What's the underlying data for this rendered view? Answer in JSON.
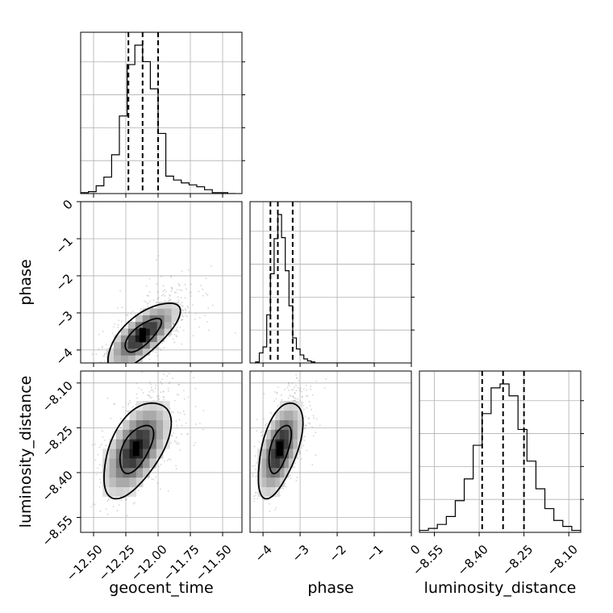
{
  "chart_data": {
    "type": "corner",
    "parameters": [
      "geocent_time",
      "phase",
      "luminosity_distance"
    ],
    "axis_labels": {
      "geocent_time": "geocent_time",
      "phase": "phase",
      "luminosity_distance": "luminosity_distance"
    },
    "ranges": {
      "geocent_time": [
        -12.6,
        -11.35
      ],
      "phase": [
        -4.35,
        0
      ],
      "luminosity_distance": [
        -8.6,
        -8.06
      ]
    },
    "ticks": {
      "geocent_time": {
        "values": [
          -12.5,
          -12.25,
          -12.0,
          -11.75,
          -11.5
        ],
        "labels": [
          "−12.50",
          "−12.25",
          "−12.00",
          "−11.75",
          "−11.50"
        ]
      },
      "phase": {
        "values": [
          -4,
          -3,
          -2,
          -1,
          0
        ],
        "labels": [
          "−4",
          "−3",
          "−2",
          "−1",
          "0"
        ]
      },
      "luminosity_distance": {
        "values": [
          -8.55,
          -8.4,
          -8.25,
          -8.1
        ],
        "labels": [
          "−8.55",
          "−8.40",
          "−8.25",
          "−8.10"
        ]
      }
    },
    "quantiles": {
      "geocent_time": [
        -12.23,
        -12.12,
        -12.0
      ],
      "phase": [
        -3.8,
        -3.6,
        -3.2
      ],
      "luminosity_distance": [
        -8.39,
        -8.32,
        -8.25
      ]
    },
    "histograms": {
      "geocent_time": {
        "edges": [
          -12.6,
          -12.54,
          -12.48,
          -12.42,
          -12.36,
          -12.3,
          -12.24,
          -12.18,
          -12.12,
          -12.06,
          -12.0,
          -11.94,
          -11.88,
          -11.82,
          -11.76,
          -11.7,
          -11.64,
          -11.58,
          -11.52,
          -11.46,
          -11.4
        ],
        "counts": [
          1,
          2,
          8,
          17,
          40,
          80,
          133,
          153,
          136,
          108,
          62,
          18,
          14,
          11,
          9,
          7,
          4,
          1,
          1,
          0
        ]
      },
      "phase": {
        "edges": [
          -4.2,
          -4.1,
          -4.0,
          -3.9,
          -3.8,
          -3.7,
          -3.6,
          -3.5,
          -3.4,
          -3.3,
          -3.2,
          -3.1,
          -3.0,
          -2.9,
          -2.8,
          -2.7,
          -2.6,
          -2.5,
          -2.4,
          -2.3,
          -2.2,
          -2.1,
          -2.0,
          -1.9,
          -1.8,
          -1.7,
          -1.6,
          -1.5,
          -1.4,
          -1.3,
          -1.2,
          -1.1,
          -1.0
        ],
        "counts": [
          1,
          10,
          16,
          48,
          89,
          124,
          148,
          125,
          92,
          57,
          25,
          14,
          8,
          4,
          2,
          1,
          0,
          0,
          0,
          0,
          0,
          0,
          0,
          0,
          0,
          0,
          0,
          0,
          0,
          0,
          0,
          0
        ]
      },
      "luminosity_distance": {
        "edges": [
          -8.6,
          -8.57,
          -8.54,
          -8.51,
          -8.48,
          -8.45,
          -8.42,
          -8.39,
          -8.36,
          -8.33,
          -8.3,
          -8.27,
          -8.24,
          -8.21,
          -8.18,
          -8.15,
          -8.12,
          -8.09,
          -8.06
        ],
        "counts": [
          1,
          2,
          4,
          8,
          16,
          27,
          44,
          60,
          73,
          75,
          69,
          52,
          36,
          22,
          12,
          6,
          3,
          1
        ]
      }
    },
    "density": {
      "geocent_time_phase": {
        "center": [
          -12.12,
          -3.6
        ],
        "sd": [
          0.14,
          0.45
        ],
        "corr": 0.72,
        "levels": [
          "0.39",
          "0.86"
        ]
      },
      "geocent_time_luminosity_distance": {
        "center": [
          -12.17,
          -8.32
        ],
        "sd": [
          0.13,
          0.08
        ],
        "corr": 0.55,
        "levels": [
          "0.39",
          "0.86"
        ]
      },
      "phase_luminosity_distance": {
        "center": [
          -3.55,
          -8.32
        ],
        "sd": [
          0.3,
          0.08
        ],
        "corr": 0.55,
        "levels": [
          "0.39",
          "0.86"
        ]
      }
    },
    "grid": true,
    "colors": {
      "hist": "#000000",
      "quantile": "#000000",
      "samples": "#888888",
      "grid": "#b0b0b0"
    }
  }
}
